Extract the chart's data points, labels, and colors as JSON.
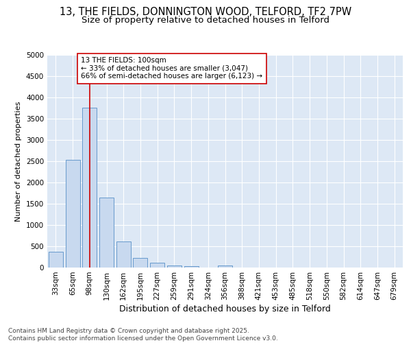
{
  "title": "13, THE FIELDS, DONNINGTON WOOD, TELFORD, TF2 7PW",
  "subtitle": "Size of property relative to detached houses in Telford",
  "xlabel": "Distribution of detached houses by size in Telford",
  "ylabel": "Number of detached properties",
  "categories": [
    "33sqm",
    "65sqm",
    "98sqm",
    "130sqm",
    "162sqm",
    "195sqm",
    "227sqm",
    "259sqm",
    "291sqm",
    "324sqm",
    "356sqm",
    "388sqm",
    "421sqm",
    "453sqm",
    "485sqm",
    "518sqm",
    "550sqm",
    "582sqm",
    "614sqm",
    "647sqm",
    "679sqm"
  ],
  "values": [
    370,
    2530,
    3760,
    1650,
    620,
    230,
    105,
    50,
    40,
    0,
    50,
    0,
    0,
    0,
    0,
    0,
    0,
    0,
    0,
    0,
    0
  ],
  "bar_color": "#c8d9ef",
  "bar_edgecolor": "#6699cc",
  "bar_linewidth": 0.7,
  "vline_x": 2,
  "vline_color": "#cc0000",
  "vline_linewidth": 1.2,
  "annotation_text": "13 THE FIELDS: 100sqm\n← 33% of detached houses are smaller (3,047)\n66% of semi-detached houses are larger (6,123) →",
  "annotation_box_edgecolor": "#cc0000",
  "annotation_box_facecolor": "#ffffff",
  "annotation_fontsize": 7.5,
  "ylim": [
    0,
    5000
  ],
  "yticks": [
    0,
    500,
    1000,
    1500,
    2000,
    2500,
    3000,
    3500,
    4000,
    4500,
    5000
  ],
  "background_color": "#dde8f5",
  "grid_color": "#ffffff",
  "footer_text": "Contains HM Land Registry data © Crown copyright and database right 2025.\nContains public sector information licensed under the Open Government Licence v3.0.",
  "title_fontsize": 10.5,
  "subtitle_fontsize": 9.5,
  "xlabel_fontsize": 9,
  "ylabel_fontsize": 8,
  "tick_fontsize": 7.5,
  "footer_fontsize": 6.5
}
